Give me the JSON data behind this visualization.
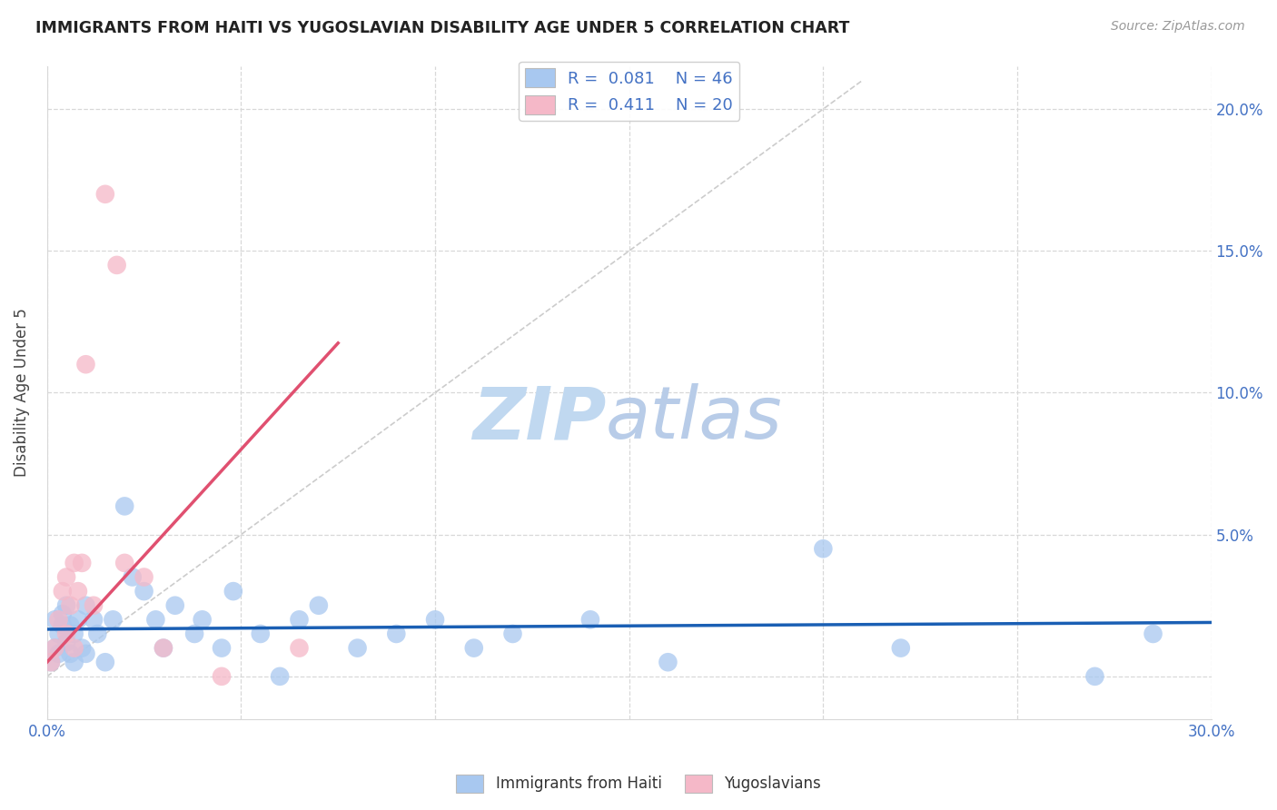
{
  "title": "IMMIGRANTS FROM HAITI VS YUGOSLAVIAN DISABILITY AGE UNDER 5 CORRELATION CHART",
  "source": "Source: ZipAtlas.com",
  "ylabel": "Disability Age Under 5",
  "xlim": [
    0.0,
    0.3
  ],
  "ylim": [
    -0.015,
    0.215
  ],
  "yticks": [
    0.0,
    0.05,
    0.1,
    0.15,
    0.2
  ],
  "ytick_labels_right": [
    "",
    "5.0%",
    "10.0%",
    "15.0%",
    "20.0%"
  ],
  "xticks": [
    0.0,
    0.05,
    0.1,
    0.15,
    0.2,
    0.25,
    0.3
  ],
  "xtick_labels": [
    "0.0%",
    "",
    "",
    "",
    "",
    "",
    "30.0%"
  ],
  "haiti_color": "#a8c8f0",
  "yugo_color": "#f5b8c8",
  "haiti_line_color": "#1a5fb4",
  "yugo_line_color": "#e05070",
  "diagonal_color": "#cccccc",
  "R_haiti": 0.081,
  "N_haiti": 46,
  "R_yugo": 0.411,
  "N_yugo": 20,
  "haiti_x": [
    0.001,
    0.002,
    0.002,
    0.003,
    0.003,
    0.004,
    0.004,
    0.005,
    0.005,
    0.006,
    0.006,
    0.007,
    0.007,
    0.008,
    0.009,
    0.01,
    0.01,
    0.012,
    0.013,
    0.015,
    0.017,
    0.02,
    0.022,
    0.025,
    0.028,
    0.03,
    0.033,
    0.038,
    0.04,
    0.045,
    0.048,
    0.055,
    0.06,
    0.065,
    0.07,
    0.08,
    0.09,
    0.1,
    0.11,
    0.12,
    0.14,
    0.16,
    0.2,
    0.22,
    0.27,
    0.285
  ],
  "haiti_y": [
    0.005,
    0.01,
    0.02,
    0.008,
    0.015,
    0.018,
    0.022,
    0.012,
    0.025,
    0.008,
    0.018,
    0.015,
    0.005,
    0.02,
    0.01,
    0.008,
    0.025,
    0.02,
    0.015,
    0.005,
    0.02,
    0.06,
    0.035,
    0.03,
    0.02,
    0.01,
    0.025,
    0.015,
    0.02,
    0.01,
    0.03,
    0.015,
    0.0,
    0.02,
    0.025,
    0.01,
    0.015,
    0.02,
    0.01,
    0.015,
    0.02,
    0.005,
    0.045,
    0.01,
    0.0,
    0.015
  ],
  "yugo_x": [
    0.001,
    0.002,
    0.003,
    0.004,
    0.005,
    0.005,
    0.006,
    0.007,
    0.007,
    0.008,
    0.009,
    0.01,
    0.012,
    0.015,
    0.018,
    0.02,
    0.025,
    0.03,
    0.045,
    0.065
  ],
  "yugo_y": [
    0.005,
    0.01,
    0.02,
    0.03,
    0.015,
    0.035,
    0.025,
    0.01,
    0.04,
    0.03,
    0.04,
    0.11,
    0.025,
    0.17,
    0.145,
    0.04,
    0.035,
    0.01,
    0.0,
    0.01
  ],
  "background_color": "#ffffff",
  "grid_color": "#d8d8d8",
  "watermark_zip": "ZIP",
  "watermark_atlas": "atlas",
  "watermark_color": "#c8ddf0"
}
